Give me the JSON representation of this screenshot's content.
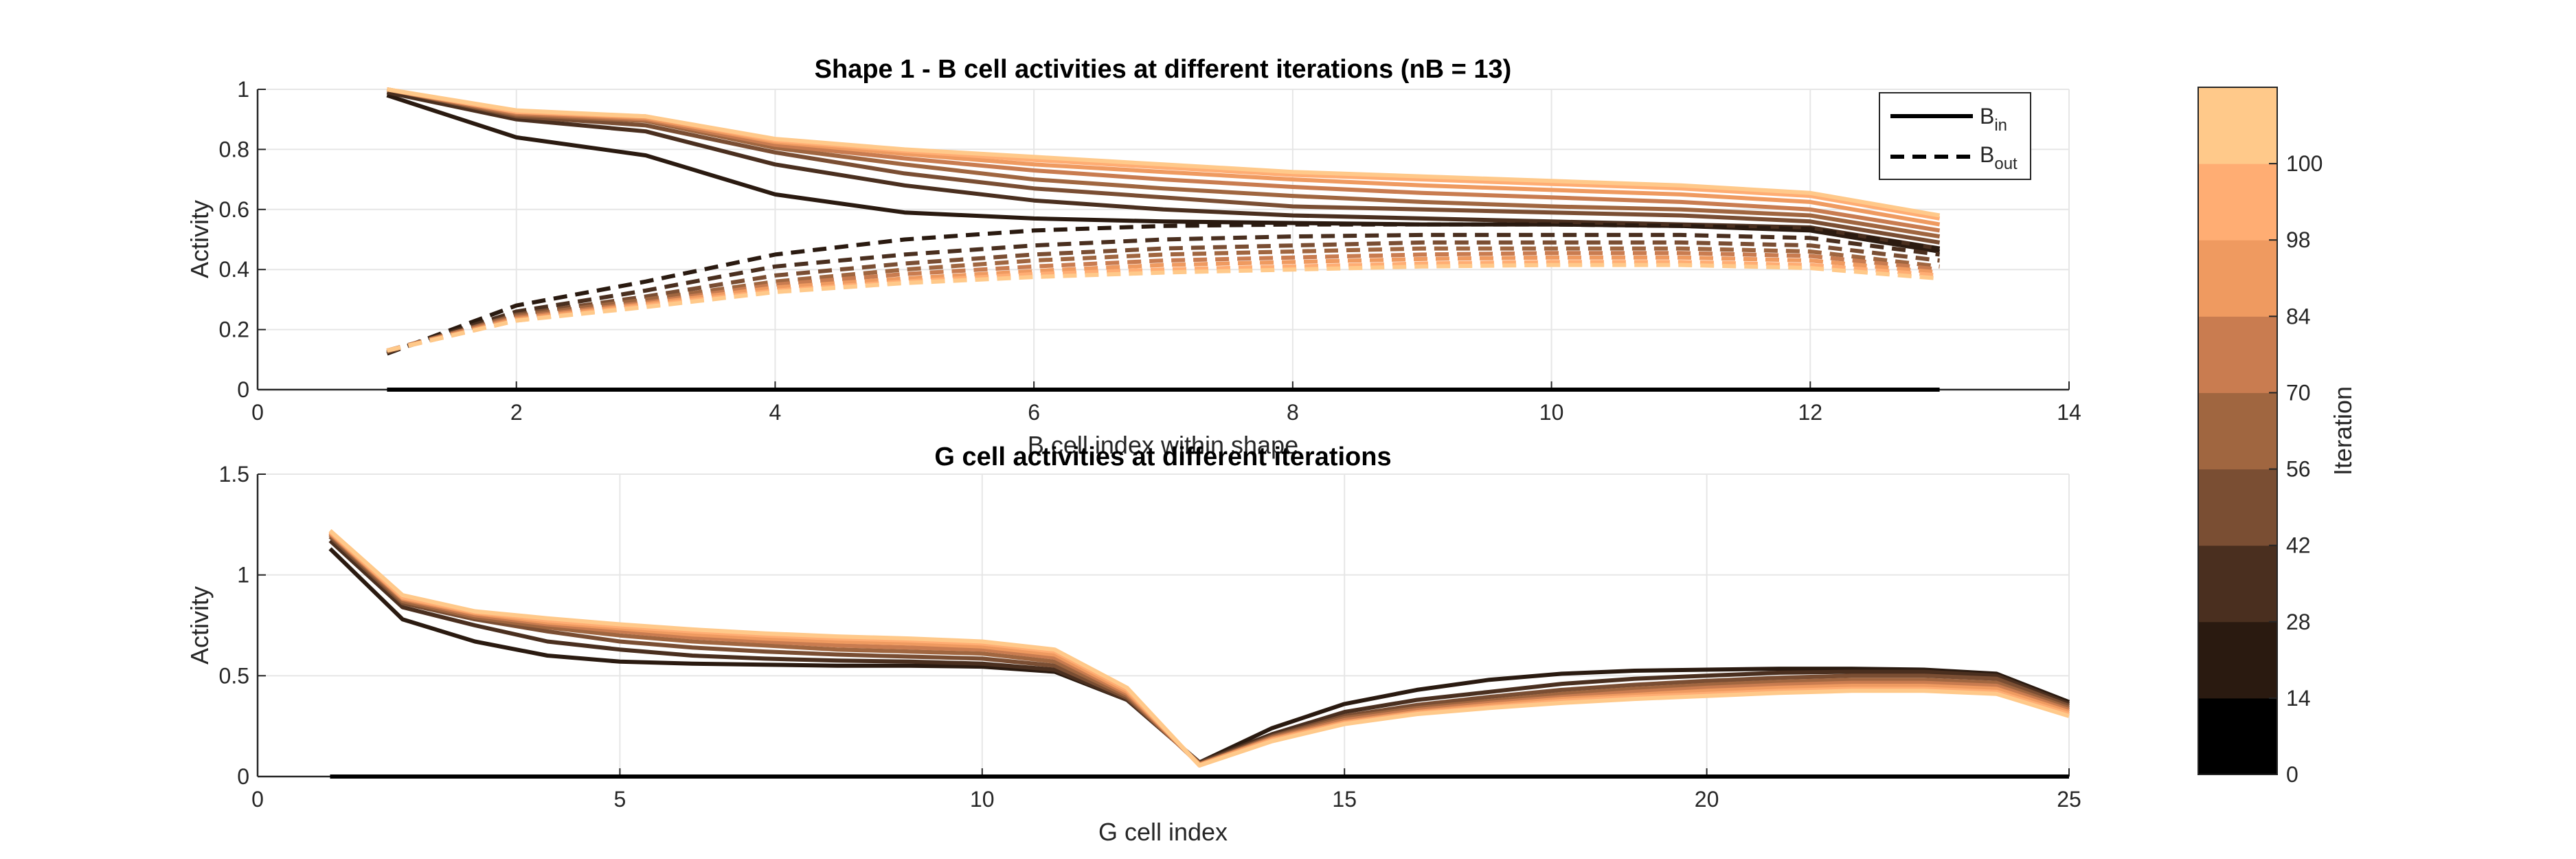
{
  "chart_data": [
    {
      "type": "line",
      "title": "Shape 1 - B cell activities at different iterations (nB = 13)",
      "xlabel": "B cell index within shape",
      "ylabel": "Activity",
      "xlim": [
        0,
        14
      ],
      "ylim": [
        0,
        1
      ],
      "xticks": [
        "0",
        "2",
        "4",
        "6",
        "8",
        "10",
        "12",
        "14"
      ],
      "yticks": [
        "0",
        "0.2",
        "0.4",
        "0.6",
        "0.8",
        "1"
      ],
      "grid": true,
      "legend": {
        "position": "top-right",
        "entries": [
          {
            "base": "B",
            "sub": "in",
            "style": "solid"
          },
          {
            "base": "B",
            "sub": "out",
            "style": "dashed"
          }
        ]
      },
      "x": [
        1,
        2,
        3,
        4,
        5,
        6,
        7,
        8,
        9,
        10,
        11,
        12,
        13
      ],
      "series": [
        {
          "iteration": 0,
          "color": "#000000",
          "style": "solid",
          "values": [
            0,
            0,
            0,
            0,
            0,
            0,
            0,
            0,
            0,
            0,
            0,
            0,
            0
          ]
        },
        {
          "iteration": 14,
          "color": "#2a1a10",
          "style": "solid",
          "values": [
            0.98,
            0.84,
            0.78,
            0.65,
            0.59,
            0.57,
            0.56,
            0.555,
            0.55,
            0.55,
            0.545,
            0.53,
            0.46
          ]
        },
        {
          "iteration": 28,
          "color": "#4a2f1f",
          "style": "solid",
          "values": [
            0.99,
            0.9,
            0.86,
            0.75,
            0.68,
            0.63,
            0.6,
            0.58,
            0.57,
            0.56,
            0.55,
            0.54,
            0.47
          ]
        },
        {
          "iteration": 42,
          "color": "#7a4e33",
          "style": "solid",
          "values": [
            1.0,
            0.91,
            0.88,
            0.79,
            0.72,
            0.67,
            0.64,
            0.61,
            0.6,
            0.59,
            0.58,
            0.56,
            0.49
          ]
        },
        {
          "iteration": 56,
          "color": "#a06640",
          "style": "solid",
          "values": [
            1.0,
            0.915,
            0.895,
            0.805,
            0.75,
            0.7,
            0.67,
            0.645,
            0.625,
            0.61,
            0.6,
            0.58,
            0.51
          ]
        },
        {
          "iteration": 70,
          "color": "#c97c50",
          "style": "solid",
          "values": [
            1.0,
            0.92,
            0.9,
            0.815,
            0.77,
            0.73,
            0.7,
            0.675,
            0.655,
            0.64,
            0.625,
            0.6,
            0.53
          ]
        },
        {
          "iteration": 84,
          "color": "#ef9a60",
          "style": "solid",
          "values": [
            1.0,
            0.925,
            0.905,
            0.825,
            0.785,
            0.75,
            0.725,
            0.7,
            0.68,
            0.665,
            0.65,
            0.625,
            0.55
          ]
        },
        {
          "iteration": 98,
          "color": "#ffad73",
          "style": "solid",
          "values": [
            1.0,
            0.925,
            0.91,
            0.83,
            0.795,
            0.765,
            0.74,
            0.715,
            0.7,
            0.685,
            0.67,
            0.645,
            0.57
          ]
        },
        {
          "iteration": 100,
          "color": "#ffc98a",
          "style": "solid",
          "values": [
            1.0,
            0.93,
            0.91,
            0.835,
            0.8,
            0.775,
            0.75,
            0.725,
            0.71,
            0.695,
            0.68,
            0.655,
            0.58
          ]
        },
        {
          "iteration": 14,
          "color": "#2a1a10",
          "style": "dashed",
          "values": [
            0.12,
            0.28,
            0.36,
            0.45,
            0.5,
            0.53,
            0.545,
            0.55,
            0.55,
            0.55,
            0.545,
            0.535,
            0.47
          ]
        },
        {
          "iteration": 28,
          "color": "#4a2f1f",
          "style": "dashed",
          "values": [
            0.125,
            0.26,
            0.33,
            0.41,
            0.45,
            0.48,
            0.5,
            0.51,
            0.515,
            0.515,
            0.515,
            0.505,
            0.45
          ]
        },
        {
          "iteration": 42,
          "color": "#7a4e33",
          "style": "dashed",
          "values": [
            0.125,
            0.25,
            0.31,
            0.38,
            0.42,
            0.45,
            0.47,
            0.48,
            0.49,
            0.49,
            0.49,
            0.48,
            0.43
          ]
        },
        {
          "iteration": 56,
          "color": "#a06640",
          "style": "dashed",
          "values": [
            0.13,
            0.245,
            0.3,
            0.36,
            0.4,
            0.43,
            0.45,
            0.46,
            0.47,
            0.47,
            0.47,
            0.46,
            0.41
          ]
        },
        {
          "iteration": 70,
          "color": "#c97c50",
          "style": "dashed",
          "values": [
            0.13,
            0.24,
            0.29,
            0.35,
            0.385,
            0.41,
            0.43,
            0.44,
            0.45,
            0.455,
            0.455,
            0.445,
            0.4
          ]
        },
        {
          "iteration": 84,
          "color": "#ef9a60",
          "style": "dashed",
          "values": [
            0.13,
            0.235,
            0.285,
            0.34,
            0.37,
            0.395,
            0.415,
            0.425,
            0.435,
            0.44,
            0.44,
            0.43,
            0.39
          ]
        },
        {
          "iteration": 98,
          "color": "#ffad73",
          "style": "dashed",
          "values": [
            0.13,
            0.23,
            0.28,
            0.33,
            0.36,
            0.385,
            0.4,
            0.41,
            0.42,
            0.425,
            0.425,
            0.415,
            0.38
          ]
        },
        {
          "iteration": 100,
          "color": "#ffc98a",
          "style": "dashed",
          "values": [
            0.13,
            0.23,
            0.275,
            0.325,
            0.355,
            0.375,
            0.39,
            0.4,
            0.41,
            0.415,
            0.415,
            0.405,
            0.37
          ]
        }
      ]
    },
    {
      "type": "line",
      "title": "G cell activities at different iterations",
      "xlabel": "G cell index",
      "ylabel": "Activity",
      "xlim": [
        0,
        25
      ],
      "ylim": [
        0,
        1.5
      ],
      "xticks": [
        "0",
        "5",
        "10",
        "15",
        "20",
        "25"
      ],
      "yticks": [
        "0",
        "0.5",
        "1",
        "1.5"
      ],
      "grid": true,
      "x": [
        1,
        2,
        3,
        4,
        5,
        6,
        7,
        8,
        9,
        10,
        11,
        12,
        13,
        14,
        15,
        16,
        17,
        18,
        19,
        20,
        21,
        22,
        23,
        24,
        25
      ],
      "series": [
        {
          "iteration": 0,
          "color": "#000000",
          "values": [
            0,
            0,
            0,
            0,
            0,
            0,
            0,
            0,
            0,
            0,
            0,
            0,
            0,
            0,
            0,
            0,
            0,
            0,
            0,
            0,
            0,
            0,
            0,
            0,
            0
          ]
        },
        {
          "iteration": 14,
          "color": "#2a1a10",
          "values": [
            1.13,
            0.78,
            0.67,
            0.6,
            0.57,
            0.56,
            0.555,
            0.55,
            0.55,
            0.545,
            0.52,
            0.38,
            0.07,
            0.24,
            0.36,
            0.43,
            0.48,
            0.51,
            0.525,
            0.53,
            0.535,
            0.535,
            0.53,
            0.51,
            0.37
          ]
        },
        {
          "iteration": 28,
          "color": "#4a2f1f",
          "values": [
            1.17,
            0.84,
            0.75,
            0.67,
            0.63,
            0.6,
            0.585,
            0.575,
            0.57,
            0.56,
            0.53,
            0.38,
            0.07,
            0.21,
            0.32,
            0.38,
            0.42,
            0.46,
            0.485,
            0.5,
            0.515,
            0.52,
            0.52,
            0.5,
            0.36
          ]
        },
        {
          "iteration": 42,
          "color": "#7a4e33",
          "values": [
            1.19,
            0.86,
            0.78,
            0.72,
            0.67,
            0.64,
            0.62,
            0.605,
            0.595,
            0.585,
            0.55,
            0.39,
            0.065,
            0.2,
            0.3,
            0.355,
            0.395,
            0.43,
            0.455,
            0.475,
            0.49,
            0.5,
            0.5,
            0.485,
            0.35
          ]
        },
        {
          "iteration": 56,
          "color": "#a06640",
          "values": [
            1.2,
            0.87,
            0.79,
            0.74,
            0.7,
            0.67,
            0.65,
            0.63,
            0.62,
            0.61,
            0.57,
            0.4,
            0.06,
            0.195,
            0.29,
            0.34,
            0.375,
            0.41,
            0.435,
            0.455,
            0.47,
            0.48,
            0.48,
            0.465,
            0.34
          ]
        },
        {
          "iteration": 70,
          "color": "#c97c50",
          "values": [
            1.205,
            0.88,
            0.8,
            0.755,
            0.72,
            0.69,
            0.67,
            0.65,
            0.64,
            0.63,
            0.59,
            0.41,
            0.06,
            0.19,
            0.28,
            0.33,
            0.365,
            0.395,
            0.42,
            0.44,
            0.455,
            0.465,
            0.465,
            0.45,
            0.33
          ]
        },
        {
          "iteration": 84,
          "color": "#ef9a60",
          "values": [
            1.21,
            0.885,
            0.81,
            0.765,
            0.735,
            0.705,
            0.685,
            0.67,
            0.66,
            0.645,
            0.605,
            0.42,
            0.06,
            0.185,
            0.27,
            0.32,
            0.355,
            0.385,
            0.405,
            0.425,
            0.44,
            0.45,
            0.45,
            0.435,
            0.32
          ]
        },
        {
          "iteration": 98,
          "color": "#ffad73",
          "values": [
            1.215,
            0.89,
            0.815,
            0.775,
            0.745,
            0.72,
            0.7,
            0.685,
            0.675,
            0.66,
            0.62,
            0.43,
            0.055,
            0.18,
            0.265,
            0.315,
            0.345,
            0.375,
            0.395,
            0.41,
            0.425,
            0.435,
            0.435,
            0.42,
            0.31
          ]
        },
        {
          "iteration": 100,
          "color": "#ffc98a",
          "values": [
            1.22,
            0.9,
            0.82,
            0.785,
            0.755,
            0.73,
            0.71,
            0.695,
            0.685,
            0.67,
            0.63,
            0.44,
            0.055,
            0.175,
            0.26,
            0.31,
            0.34,
            0.365,
            0.385,
            0.4,
            0.415,
            0.425,
            0.425,
            0.41,
            0.3
          ]
        }
      ]
    }
  ],
  "colorbar": {
    "label": "Iteration",
    "ticks": [
      "0",
      "14",
      "28",
      "42",
      "56",
      "70",
      "84",
      "98",
      "100"
    ],
    "colors": [
      "#000000",
      "#2a1a10",
      "#4a2f1f",
      "#7a4e33",
      "#a06640",
      "#c97c50",
      "#ef9a60",
      "#ffad73",
      "#ffc98a"
    ]
  }
}
